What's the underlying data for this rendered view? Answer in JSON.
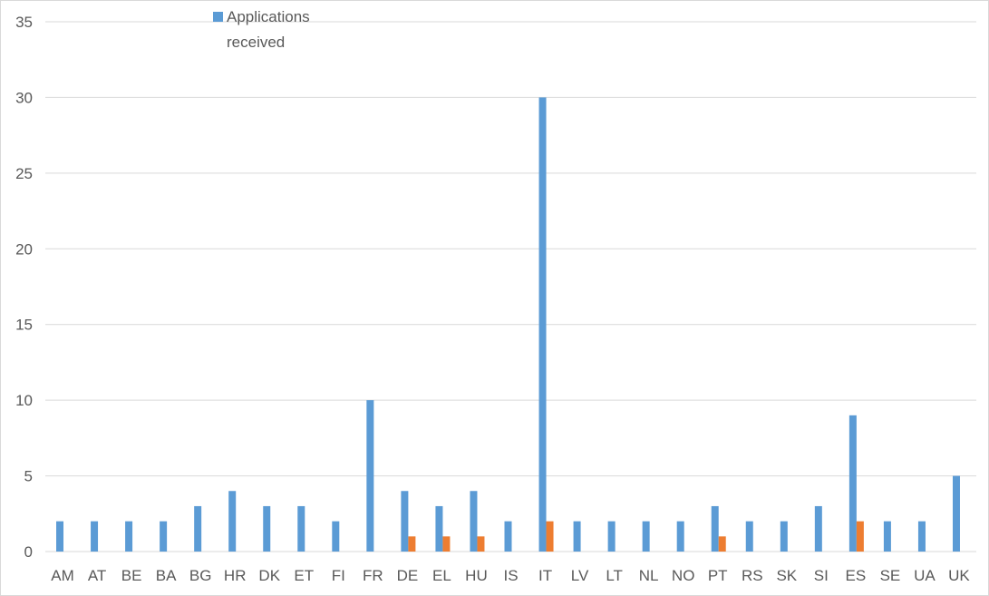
{
  "chart_data": {
    "type": "bar",
    "categories": [
      "AM",
      "AT",
      "BE",
      "BA",
      "BG",
      "HR",
      "DK",
      "ET",
      "FI",
      "FR",
      "DE",
      "EL",
      "HU",
      "IS",
      "IT",
      "LV",
      "LT",
      "NL",
      "NO",
      "PT",
      "RS",
      "SK",
      "SI",
      "ES",
      "SE",
      "UA",
      "UK"
    ],
    "series": [
      {
        "name": "Applications received",
        "color": "#5b9bd5",
        "values": [
          2,
          2,
          2,
          2,
          3,
          4,
          3,
          3,
          2,
          10,
          4,
          3,
          4,
          2,
          30,
          2,
          2,
          2,
          2,
          3,
          2,
          2,
          3,
          9,
          2,
          2,
          5
        ]
      },
      {
        "color": "#ed7d31",
        "values": [
          0,
          0,
          0,
          0,
          0,
          0,
          0,
          0,
          0,
          0,
          1,
          1,
          1,
          0,
          2,
          0,
          0,
          0,
          0,
          1,
          0,
          0,
          0,
          2,
          0,
          0,
          0
        ]
      }
    ],
    "ylim": [
      0,
      35
    ],
    "yticks": [
      0,
      5,
      10,
      15,
      20,
      25,
      30,
      35
    ],
    "grid": true,
    "legend": {
      "position": "top",
      "label_lines": [
        "Applications",
        "received"
      ]
    },
    "title": "",
    "xlabel": "",
    "ylabel": ""
  }
}
